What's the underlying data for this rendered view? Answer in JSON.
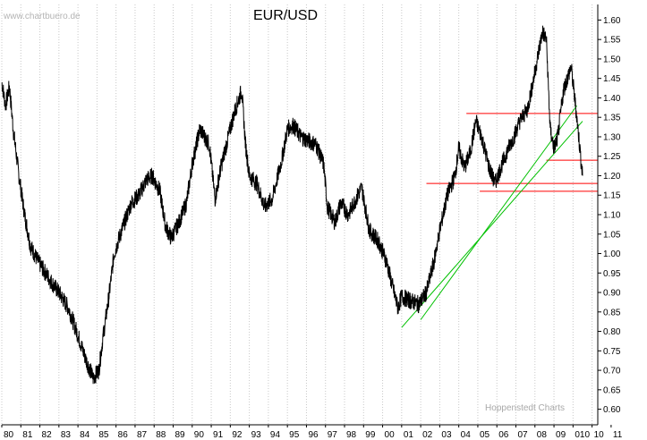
{
  "chart_data": {
    "type": "line",
    "title": "EUR/USD",
    "watermark": "www.chartbuero.de",
    "credit": "Hoppenstedt Charts",
    "xlabel": "",
    "ylabel": "",
    "x_tick_labels": [
      "80",
      "81",
      "82",
      "83",
      "84",
      "85",
      "86",
      "87",
      "88",
      "89",
      "90",
      "91",
      "92",
      "93",
      "94",
      "95",
      "96",
      "97",
      "98",
      "99",
      "00",
      "01",
      "02",
      "03",
      "04",
      "05",
      "06",
      "07",
      "08",
      "09",
      "010",
      "10",
      "11"
    ],
    "y_tick_labels": [
      "1.60",
      "1.55",
      "1.50",
      "1.45",
      "1.40",
      "1.35",
      "1.30",
      "1.25",
      "1.20",
      "1.15",
      "1.10",
      "1.05",
      "1.00",
      "0.95",
      "0.90",
      "0.85",
      "0.80",
      "0.75",
      "0.70",
      "0.65",
      "0.60"
    ],
    "xlim": [
      1980.0,
      2011.3
    ],
    "ylim": [
      0.56,
      1.64
    ],
    "y_axis_position": "right",
    "grid": "vertical dotted lines at each year",
    "colors": {
      "price": "#000000",
      "support_resistance": "#ff0000",
      "trendline": "#00c000",
      "grid": "#c8c8c8",
      "watermark": "#b4b4b4"
    },
    "series": [
      {
        "x": [
          1980.0,
          1980.2,
          1980.4,
          1980.6,
          1980.9,
          1981.2,
          1981.5,
          1981.9,
          1982.3,
          1982.7,
          1983.0,
          1983.5,
          1984.0,
          1984.4,
          1984.8,
          1985.1,
          1985.3,
          1985.6,
          1985.9,
          1986.3,
          1986.8,
          1987.2,
          1987.6,
          1987.9,
          1988.3,
          1988.6,
          1988.9,
          1989.3,
          1989.7,
          1990.0,
          1990.4,
          1990.9,
          1991.2,
          1991.5,
          1991.9,
          1992.2,
          1992.6,
          1992.8,
          1993.0,
          1993.4,
          1993.8,
          1994.2,
          1994.7,
          1995.0,
          1995.3,
          1995.7,
          1996.1,
          1996.5,
          1996.9,
          1997.1,
          1997.5,
          1997.8,
          1998.2,
          1998.6,
          1998.9,
          1999.3,
          1999.8,
          2000.2,
          2000.5,
          2000.8,
          2001.0,
          2001.4,
          2001.9,
          2002.3,
          2002.7,
          2003.0,
          2003.4,
          2003.8,
          2004.0,
          2004.3,
          2004.6,
          2004.9,
          2005.2,
          2005.6,
          2005.9,
          2006.2,
          2006.6,
          2006.9,
          2007.2,
          2007.6,
          2007.9,
          2008.2,
          2008.4,
          2008.6,
          2008.8,
          2009.0,
          2009.2,
          2009.5,
          2009.9,
          2010.2,
          2010.4,
          2010.5
        ],
        "y": [
          1.44,
          1.38,
          1.43,
          1.32,
          1.2,
          1.1,
          1.02,
          0.98,
          0.95,
          0.92,
          0.9,
          0.86,
          0.79,
          0.73,
          0.68,
          0.7,
          0.78,
          0.88,
          1.0,
          1.06,
          1.13,
          1.15,
          1.19,
          1.2,
          1.16,
          1.07,
          1.04,
          1.08,
          1.13,
          1.23,
          1.32,
          1.28,
          1.14,
          1.22,
          1.3,
          1.36,
          1.42,
          1.28,
          1.2,
          1.18,
          1.12,
          1.14,
          1.24,
          1.32,
          1.33,
          1.3,
          1.29,
          1.28,
          1.23,
          1.12,
          1.08,
          1.13,
          1.1,
          1.14,
          1.17,
          1.06,
          1.03,
          0.98,
          0.92,
          0.86,
          0.89,
          0.88,
          0.87,
          0.9,
          0.98,
          1.06,
          1.15,
          1.2,
          1.27,
          1.22,
          1.26,
          1.34,
          1.3,
          1.22,
          1.18,
          1.22,
          1.27,
          1.3,
          1.34,
          1.37,
          1.44,
          1.52,
          1.57,
          1.55,
          1.32,
          1.27,
          1.3,
          1.42,
          1.48,
          1.35,
          1.25,
          1.2
        ]
      }
    ],
    "horizontal_levels": [
      1.36,
      1.24,
      1.18,
      1.16
    ],
    "trendlines": [
      {
        "x": [
          2002.0,
          2010.2
        ],
        "y": [
          0.83,
          1.38
        ]
      },
      {
        "x": [
          2001.0,
          2010.5
        ],
        "y": [
          0.81,
          1.34
        ]
      }
    ]
  }
}
